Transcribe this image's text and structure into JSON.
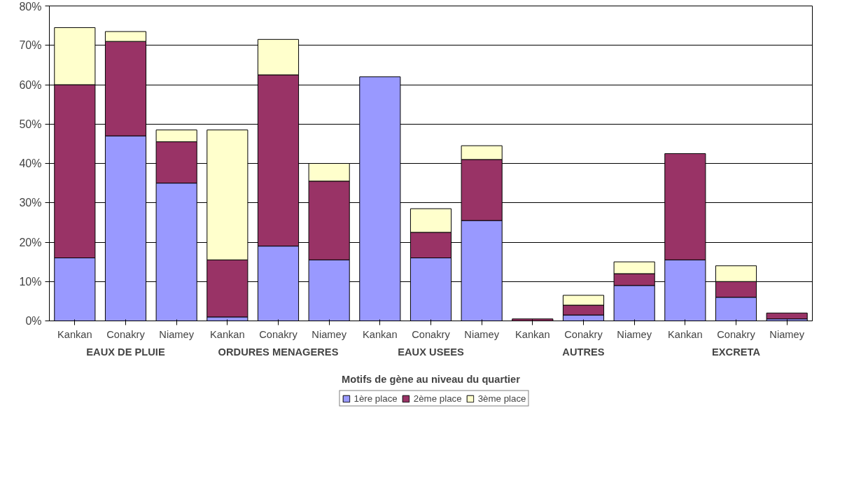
{
  "chart_data": {
    "type": "bar",
    "stacked": true,
    "xlabel": "Motifs de gène au niveau du quartier",
    "categories": [
      "Kankan",
      "Conakry",
      "Niamey",
      "Kankan",
      "Conakry",
      "Niamey",
      "Kankan",
      "Conakry",
      "Niamey",
      "Kankan",
      "Conakry",
      "Niamey",
      "Kankan",
      "Conakry",
      "Niamey"
    ],
    "annotations": [
      "EAUX DE PLUIE",
      "ORDURES MENAGERES",
      "EAUX USEES",
      "AUTRES",
      "EXCRETA"
    ],
    "series": [
      {
        "name": "1ère place",
        "color": "#9999ff",
        "values": [
          16,
          47,
          35,
          1,
          19,
          15.5,
          62,
          16,
          25.5,
          null,
          1.5,
          9,
          15.5,
          6,
          0.5
        ]
      },
      {
        "name": "2ème place",
        "color": "#993366",
        "values": [
          44,
          24,
          10.5,
          14.5,
          43.5,
          20,
          null,
          6.5,
          15.5,
          0.5,
          2.5,
          3,
          27,
          4,
          1.5
        ]
      },
      {
        "name": "3ème place",
        "color": "#ffffcc",
        "values": [
          14.5,
          2.5,
          3,
          33,
          9,
          4.5,
          null,
          6,
          3.5,
          null,
          2.5,
          3,
          null,
          4,
          null
        ]
      }
    ],
    "ylim": [
      0,
      80
    ],
    "yticks": [
      {
        "value": 0,
        "label": "0%"
      },
      {
        "value": 10,
        "label": "10%"
      },
      {
        "value": 20,
        "label": "20%"
      },
      {
        "value": 30,
        "label": "30%"
      },
      {
        "value": 40,
        "label": "40%"
      },
      {
        "value": 50,
        "label": "50%"
      },
      {
        "value": 60,
        "label": "60%"
      },
      {
        "value": 70,
        "label": "70%"
      },
      {
        "value": 80,
        "label": "80%"
      }
    ],
    "grid": "y",
    "legend": "bottom"
  }
}
